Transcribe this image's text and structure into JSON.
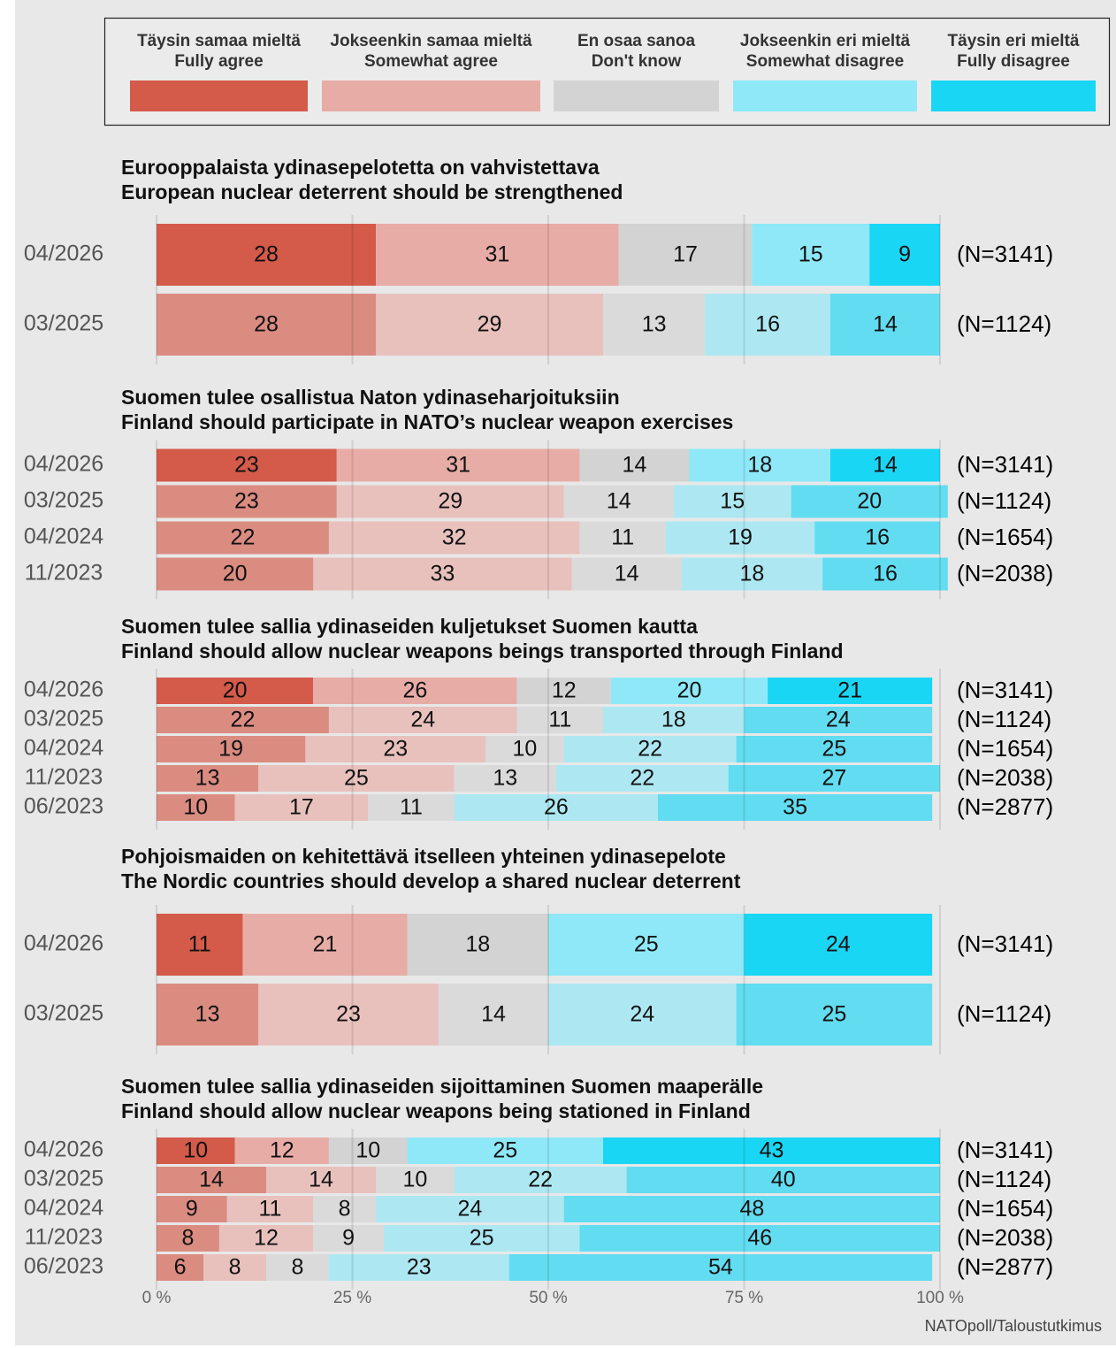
{
  "legend": {
    "items": [
      {
        "label": [
          "Täysin samaa mieltä",
          "Fully agree"
        ],
        "color": "#d45a4a"
      },
      {
        "label": [
          "Jokseenkin samaa mieltä",
          "Somewhat agree"
        ],
        "color": "#e8aca6"
      },
      {
        "label": [
          "En osaa sanoa",
          "Don't know"
        ],
        "color": "#d3d3d3"
      },
      {
        "label": [
          "Jokseenkin eri mieltä",
          "Somewhat disagree"
        ],
        "color": "#8ee8f8"
      },
      {
        "label": [
          "Täysin eri mieltä",
          "Fully disagree"
        ],
        "color": "#1ad6f5"
      }
    ]
  },
  "axis": {
    "xlim": [
      0,
      100
    ],
    "grid": true,
    "xticks": [
      {
        "value": 0,
        "label": "0 %"
      },
      {
        "value": 25,
        "label": "25 %"
      },
      {
        "value": 50,
        "label": "50 %"
      },
      {
        "value": 75,
        "label": "75 %"
      },
      {
        "value": 100,
        "label": "100 %"
      }
    ]
  },
  "source": "NATOpoll/Taloustutkimus",
  "chart_data": [
    {
      "type": "bar",
      "title": "Eurooppalaista ydinasepelotetta on vahvistettava",
      "subtitle": "European nuclear deterrent should be strengthened",
      "categories": [
        "04/2026",
        "03/2025"
      ],
      "n_labels": [
        "(N=3141)",
        "(N=1124)"
      ],
      "series": [
        {
          "values": [
            28,
            28
          ]
        },
        {
          "values": [
            31,
            29
          ]
        },
        {
          "values": [
            17,
            13
          ]
        },
        {
          "values": [
            15,
            16
          ]
        },
        {
          "values": [
            9,
            14
          ]
        }
      ]
    },
    {
      "type": "bar",
      "title": "Suomen tulee osallistua Naton ydinaseharjoituksiin",
      "subtitle": "Finland should participate in NATO’s nuclear weapon exercises",
      "categories": [
        "04/2026",
        "03/2025",
        "04/2024",
        "11/2023"
      ],
      "n_labels": [
        "(N=3141)",
        "(N=1124)",
        "(N=1654)",
        "(N=2038)"
      ],
      "series": [
        {
          "values": [
            23,
            23,
            22,
            20
          ]
        },
        {
          "values": [
            31,
            29,
            32,
            33
          ]
        },
        {
          "values": [
            14,
            14,
            11,
            14
          ]
        },
        {
          "values": [
            18,
            15,
            19,
            18
          ]
        },
        {
          "values": [
            14,
            20,
            16,
            16
          ]
        }
      ]
    },
    {
      "type": "bar",
      "title": "Suomen tulee sallia ydinaseiden kuljetukset Suomen kautta",
      "subtitle": "Finland should allow nuclear weapons beings transported through Finland",
      "categories": [
        "04/2026",
        "03/2025",
        "04/2024",
        "11/2023",
        "06/2023"
      ],
      "n_labels": [
        "(N=3141)",
        "(N=1124)",
        "(N=1654)",
        "(N=2038)",
        "(N=2877)"
      ],
      "series": [
        {
          "values": [
            20,
            22,
            19,
            13,
            10
          ]
        },
        {
          "values": [
            26,
            24,
            23,
            25,
            17
          ]
        },
        {
          "values": [
            12,
            11,
            10,
            13,
            11
          ]
        },
        {
          "values": [
            20,
            18,
            22,
            22,
            26
          ]
        },
        {
          "values": [
            21,
            24,
            25,
            27,
            35
          ]
        }
      ]
    },
    {
      "type": "bar",
      "title": "Pohjoismaiden on kehitettävä itselleen yhteinen ydinasepelote",
      "subtitle": "The Nordic countries should develop a shared nuclear deterrent",
      "categories": [
        "04/2026",
        "03/2025"
      ],
      "n_labels": [
        "(N=3141)",
        "(N=1124)"
      ],
      "series": [
        {
          "values": [
            11,
            13
          ]
        },
        {
          "values": [
            21,
            23
          ]
        },
        {
          "values": [
            18,
            14
          ]
        },
        {
          "values": [
            25,
            24
          ]
        },
        {
          "values": [
            24,
            25
          ]
        }
      ]
    },
    {
      "type": "bar",
      "title": "Suomen tulee sallia ydinaseiden sijoittaminen Suomen maaperälle",
      "subtitle": "Finland should allow nuclear weapons being stationed in Finland",
      "categories": [
        "04/2026",
        "03/2025",
        "04/2024",
        "11/2023",
        "06/2023"
      ],
      "n_labels": [
        "(N=3141)",
        "(N=1124)",
        "(N=1654)",
        "(N=2038)",
        "(N=2877)"
      ],
      "series": [
        {
          "values": [
            10,
            14,
            9,
            8,
            6
          ]
        },
        {
          "values": [
            12,
            14,
            11,
            12,
            8
          ]
        },
        {
          "values": [
            10,
            10,
            8,
            9,
            8
          ]
        },
        {
          "values": [
            25,
            22,
            24,
            25,
            23
          ]
        },
        {
          "values": [
            43,
            40,
            48,
            46,
            54
          ]
        }
      ]
    }
  ]
}
